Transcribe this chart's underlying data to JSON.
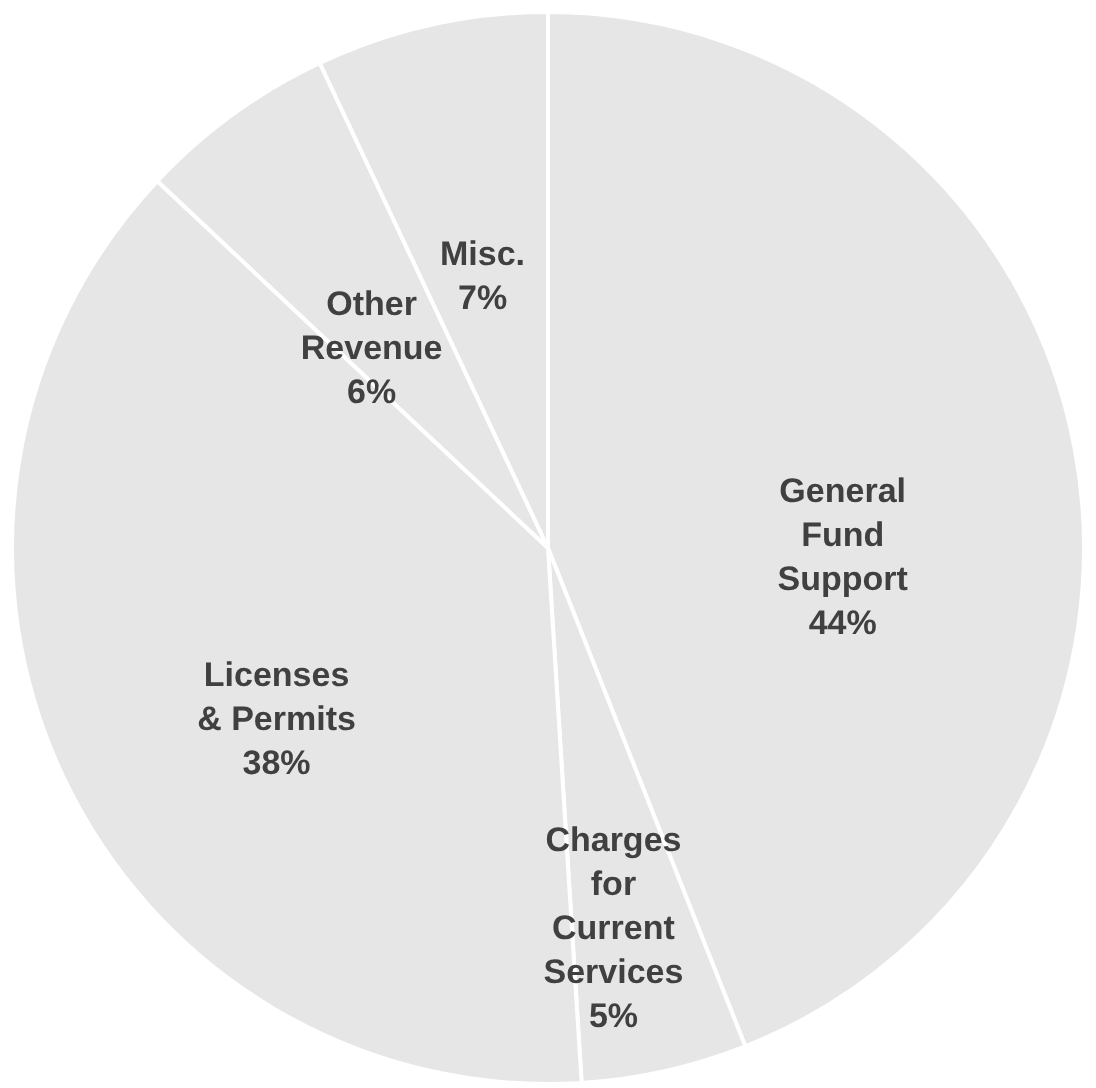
{
  "chart_data": {
    "type": "pie",
    "categories": [
      "General Fund Support",
      "Charges for Current Services",
      "Licenses & Permits",
      "Other Revenue",
      "Misc."
    ],
    "values": [
      44,
      5,
      38,
      6,
      7
    ],
    "colors": [
      "#e6e6e6",
      "#e6e6e6",
      "#e6e6e6",
      "#e6e6e6",
      "#e6e6e6"
    ],
    "value_labels": [
      "44%",
      "5%",
      "38%",
      "6%",
      "7%"
    ],
    "legend": false
  }
}
